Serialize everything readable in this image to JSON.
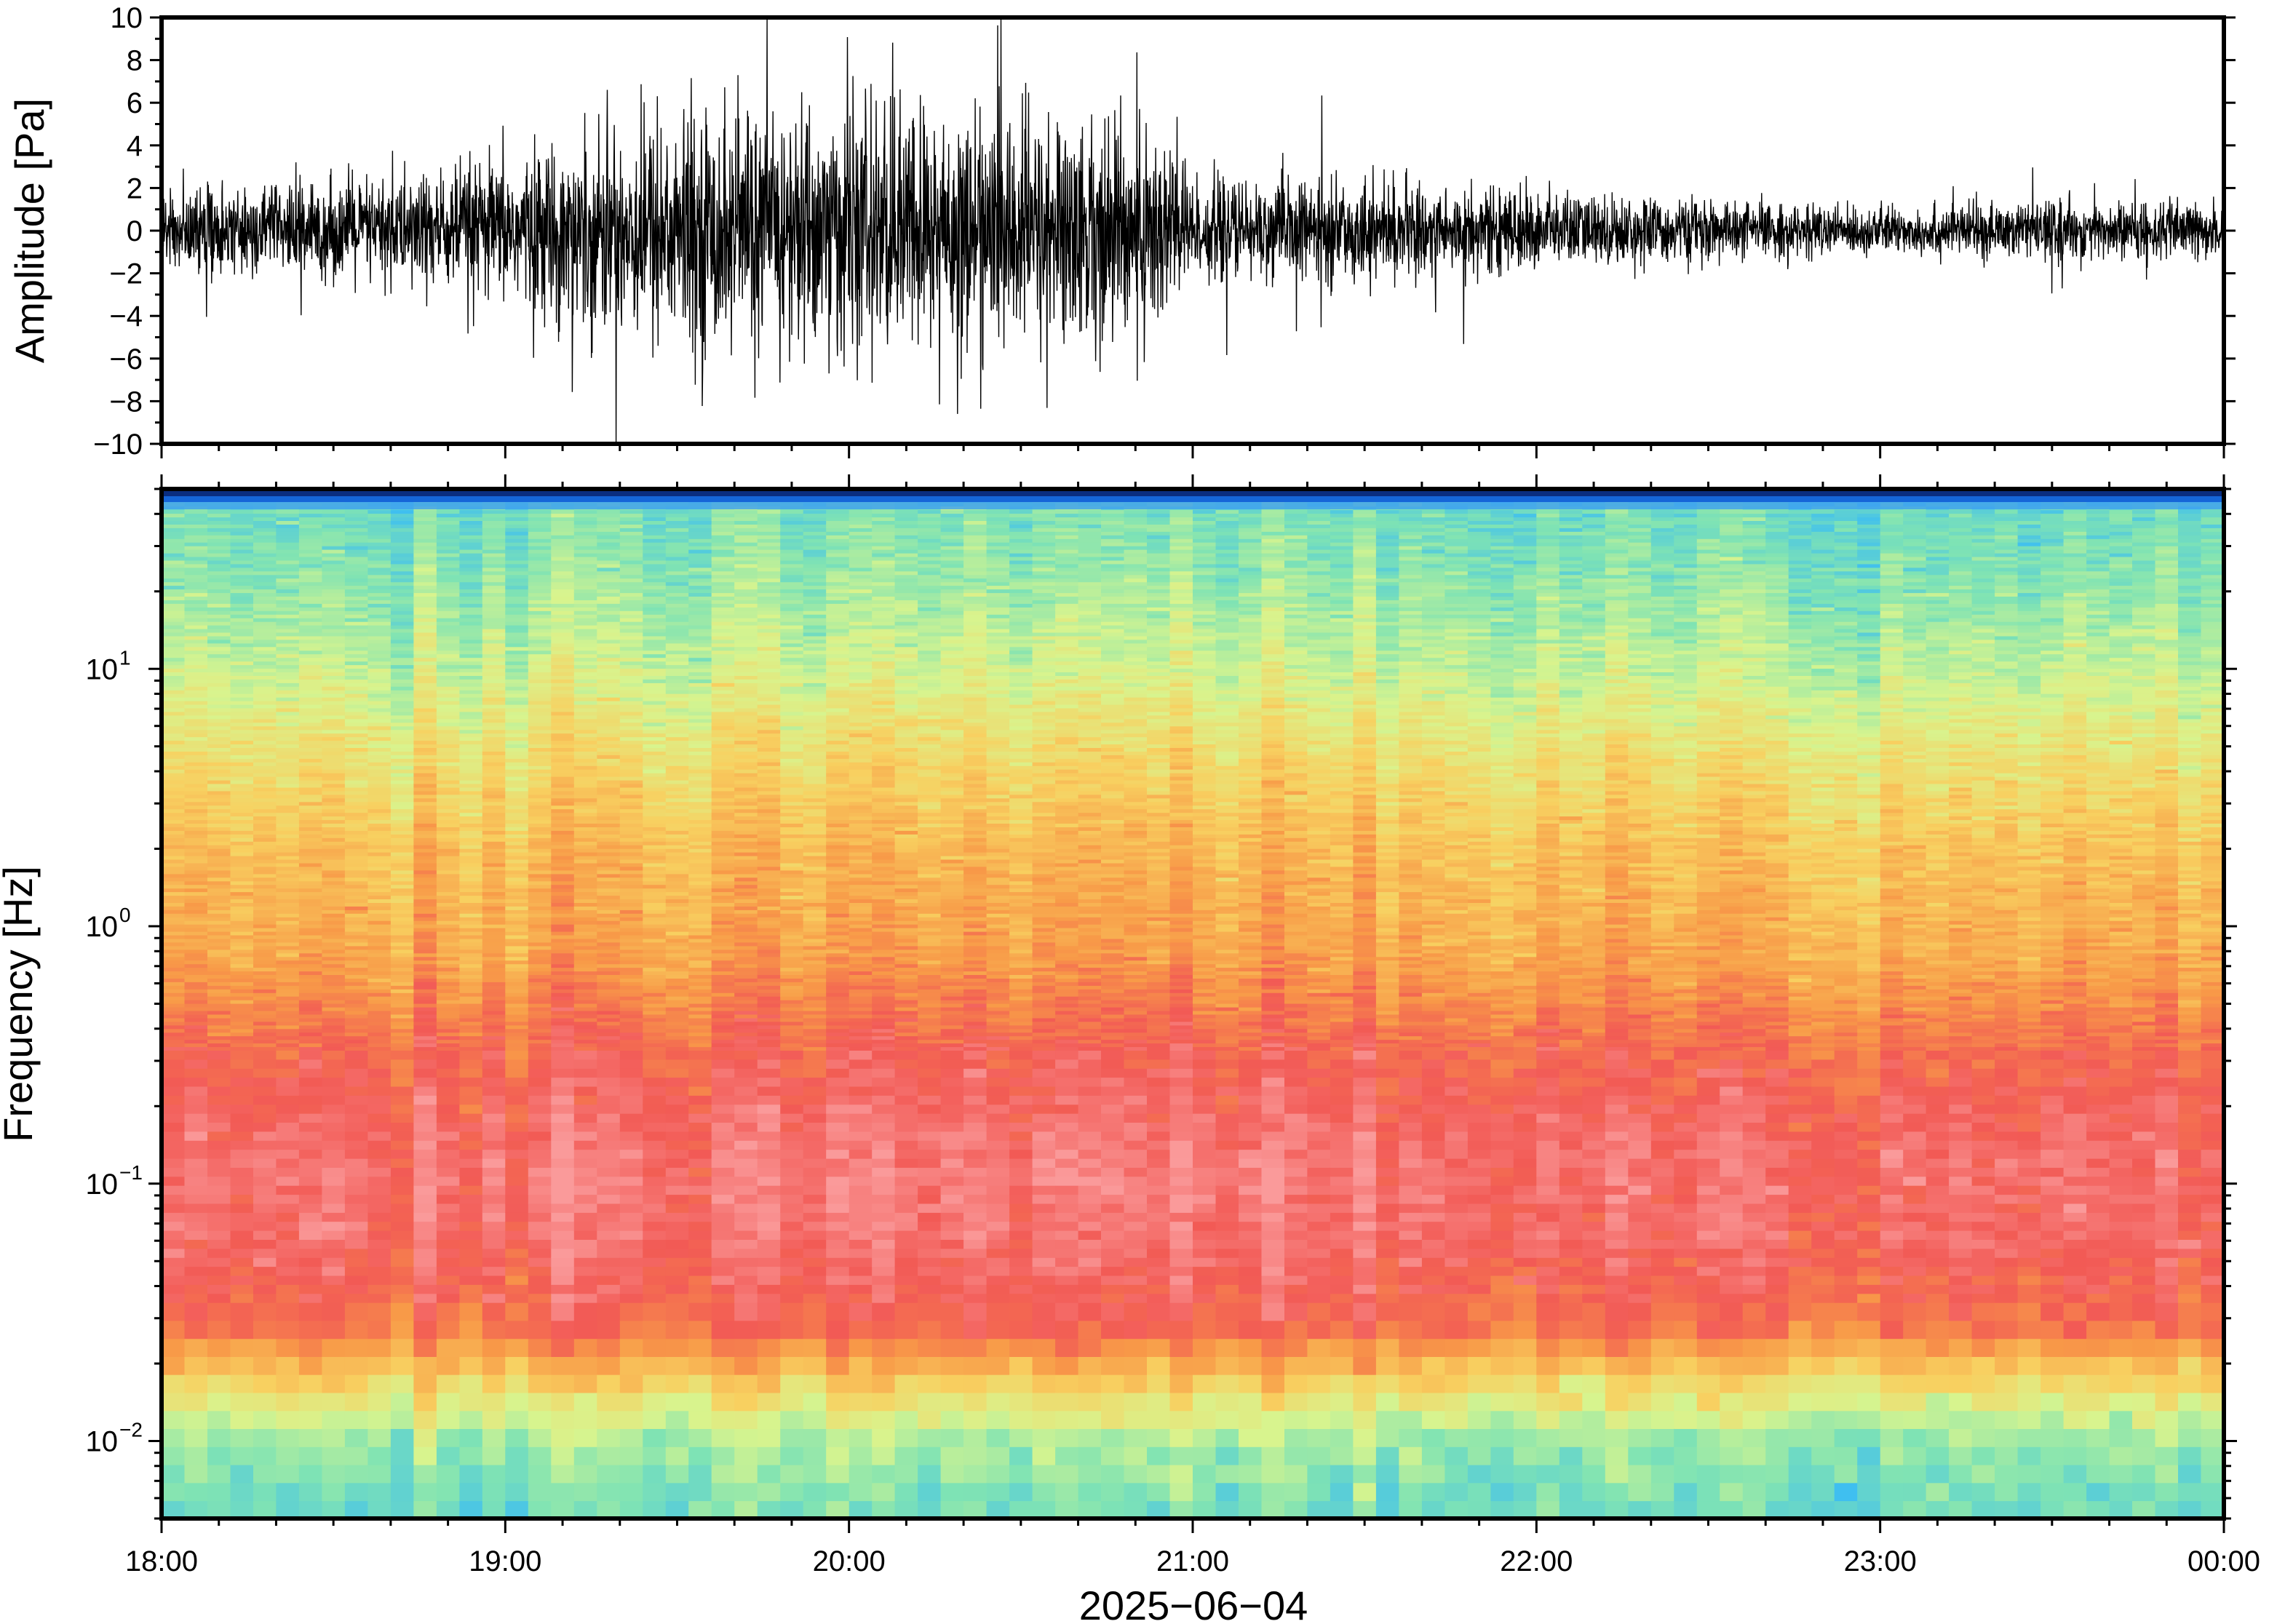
{
  "chart_data": [
    {
      "type": "line",
      "ylabel": "Amplitude [Pa]",
      "ylim": [
        -10,
        10
      ],
      "yticks": [
        -10,
        -8,
        -6,
        -4,
        -2,
        0,
        2,
        4,
        6,
        8,
        10
      ],
      "ytick_labels": [
        "−10",
        "−8",
        "−6",
        "−4",
        "−2",
        "0",
        "2",
        "4",
        "6",
        "8",
        "10"
      ],
      "x_range": [
        "18:00",
        "00:00"
      ],
      "series": [
        {
          "color": "#000000",
          "envelope_time_hours": [
            0,
            0.5,
            1.0,
            1.25,
            1.5,
            2.0,
            2.5,
            2.95,
            3.0,
            3.5,
            4.0,
            4.5,
            5.0,
            5.5,
            6.0
          ],
          "envelope_amplitude_pa": [
            2,
            2.5,
            3.5,
            5,
            6,
            6.5,
            6,
            5.5,
            2.5,
            2.5,
            2,
            1.5,
            1.2,
            1.5,
            1.5
          ]
        }
      ],
      "grid": false
    },
    {
      "type": "heatmap",
      "ylabel": "Frequency [Hz]",
      "xlabel": "2025−06−04",
      "y_scale": "log",
      "ylim": [
        0.005,
        50
      ],
      "yticks": [
        0.01,
        0.1,
        1,
        10
      ],
      "ytick_labels": [
        {
          "base": "10",
          "exp": "−2"
        },
        {
          "base": "10",
          "exp": "−1"
        },
        {
          "base": "10",
          "exp": "0"
        },
        {
          "base": "10",
          "exp": "1"
        }
      ],
      "xticks_hours": [
        0,
        1,
        2,
        3,
        4,
        5,
        6
      ],
      "xtick_labels": [
        "18:00",
        "19:00",
        "20:00",
        "21:00",
        "22:00",
        "23:00",
        "00:00"
      ],
      "colormap": [
        "#3fbff0",
        "#7fe3b4",
        "#d8f48e",
        "#f8d060",
        "#f89a48",
        "#f25a55",
        "#fa9a9a"
      ],
      "top_band_colors": [
        "#0a2d80",
        "#1565d8",
        "#3d9ff0"
      ],
      "grid": false
    }
  ]
}
